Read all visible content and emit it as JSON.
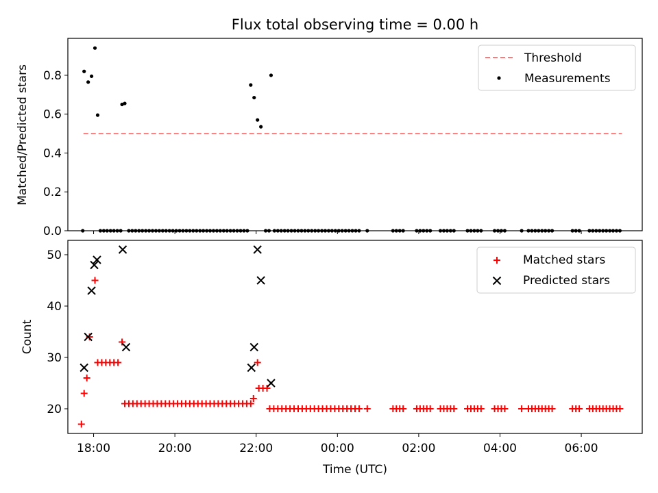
{
  "chart_data": [
    {
      "type": "scatter",
      "title": "Flux total observing time = 0.00 h",
      "ylabel": "Matched/Predicted stars",
      "xlim": [
        "17:22",
        "07:30"
      ],
      "ylim": [
        0,
        0.99
      ],
      "yticks": [
        0.0,
        0.2,
        0.4,
        0.6,
        0.8
      ],
      "ytick_labels": [
        "0.0",
        "0.2",
        "0.4",
        "0.6",
        "0.8"
      ],
      "legend": "top-right",
      "threshold": {
        "name": "Threshold",
        "value": 0.5,
        "x_range": [
          "17:45",
          "07:00"
        ],
        "color": "#ff7777"
      },
      "series": [
        {
          "name": "Measurements",
          "color": "#000000",
          "points": [
            [
              "17:44",
              0.0
            ],
            [
              "17:46",
              0.82
            ],
            [
              "17:52",
              0.765
            ],
            [
              "17:57",
              0.795
            ],
            [
              "18:02",
              0.94
            ],
            [
              "18:06",
              0.595
            ],
            [
              "18:10",
              0.0
            ],
            [
              "18:15",
              0.0
            ],
            [
              "18:20",
              0.0
            ],
            [
              "18:25",
              0.0
            ],
            [
              "18:30",
              0.0
            ],
            [
              "18:35",
              0.0
            ],
            [
              "18:40",
              0.0
            ],
            [
              "18:42",
              0.65
            ],
            [
              "18:46",
              0.655
            ],
            [
              "18:52",
              0.0
            ],
            [
              "18:57",
              0.0
            ],
            [
              "19:02",
              0.0
            ],
            [
              "19:07",
              0.0
            ],
            [
              "19:12",
              0.0
            ],
            [
              "19:17",
              0.0
            ],
            [
              "19:22",
              0.0
            ],
            [
              "19:27",
              0.0
            ],
            [
              "19:32",
              0.0
            ],
            [
              "19:37",
              0.0
            ],
            [
              "19:42",
              0.0
            ],
            [
              "19:47",
              0.0
            ],
            [
              "19:52",
              0.0
            ],
            [
              "19:57",
              0.0
            ],
            [
              "20:02",
              0.0
            ],
            [
              "20:07",
              0.0
            ],
            [
              "20:12",
              0.0
            ],
            [
              "20:17",
              0.0
            ],
            [
              "20:22",
              0.0
            ],
            [
              "20:27",
              0.0
            ],
            [
              "20:32",
              0.0
            ],
            [
              "20:37",
              0.0
            ],
            [
              "20:42",
              0.0
            ],
            [
              "20:47",
              0.0
            ],
            [
              "20:52",
              0.0
            ],
            [
              "20:57",
              0.0
            ],
            [
              "21:02",
              0.0
            ],
            [
              "21:07",
              0.0
            ],
            [
              "21:12",
              0.0
            ],
            [
              "21:17",
              0.0
            ],
            [
              "21:22",
              0.0
            ],
            [
              "21:27",
              0.0
            ],
            [
              "21:32",
              0.0
            ],
            [
              "21:37",
              0.0
            ],
            [
              "21:42",
              0.0
            ],
            [
              "21:47",
              0.0
            ],
            [
              "21:52",
              0.75
            ],
            [
              "21:57",
              0.685
            ],
            [
              "22:02",
              0.57
            ],
            [
              "22:07",
              0.535
            ],
            [
              "22:14",
              0.0
            ],
            [
              "22:19",
              0.0
            ],
            [
              "22:22",
              0.8
            ],
            [
              "22:27",
              0.0
            ],
            [
              "22:32",
              0.0
            ],
            [
              "22:37",
              0.0
            ],
            [
              "22:42",
              0.0
            ],
            [
              "22:47",
              0.0
            ],
            [
              "22:52",
              0.0
            ],
            [
              "22:57",
              0.0
            ],
            [
              "23:02",
              0.0
            ],
            [
              "23:07",
              0.0
            ],
            [
              "23:12",
              0.0
            ],
            [
              "23:17",
              0.0
            ],
            [
              "23:22",
              0.0
            ],
            [
              "23:27",
              0.0
            ],
            [
              "23:32",
              0.0
            ],
            [
              "23:37",
              0.0
            ],
            [
              "23:42",
              0.0
            ],
            [
              "23:47",
              0.0
            ],
            [
              "23:52",
              0.0
            ],
            [
              "23:57",
              0.0
            ],
            [
              "00:02",
              0.0
            ],
            [
              "00:07",
              0.0
            ],
            [
              "00:12",
              0.0
            ],
            [
              "00:17",
              0.0
            ],
            [
              "00:22",
              0.0
            ],
            [
              "00:27",
              0.0
            ],
            [
              "00:32",
              0.0
            ],
            [
              "00:44",
              0.0
            ],
            [
              "01:22",
              0.0
            ],
            [
              "01:27",
              0.0
            ],
            [
              "01:32",
              0.0
            ],
            [
              "01:37",
              0.0
            ],
            [
              "01:57",
              0.0
            ],
            [
              "02:02",
              0.0
            ],
            [
              "02:07",
              0.0
            ],
            [
              "02:12",
              0.0
            ],
            [
              "02:17",
              0.0
            ],
            [
              "02:32",
              0.0
            ],
            [
              "02:37",
              0.0
            ],
            [
              "02:42",
              0.0
            ],
            [
              "02:47",
              0.0
            ],
            [
              "02:52",
              0.0
            ],
            [
              "03:12",
              0.0
            ],
            [
              "03:17",
              0.0
            ],
            [
              "03:22",
              0.0
            ],
            [
              "03:27",
              0.0
            ],
            [
              "03:32",
              0.0
            ],
            [
              "03:52",
              0.0
            ],
            [
              "03:57",
              0.0
            ],
            [
              "04:02",
              0.0
            ],
            [
              "04:07",
              0.0
            ],
            [
              "04:32",
              0.0
            ],
            [
              "04:42",
              0.0
            ],
            [
              "04:47",
              0.0
            ],
            [
              "04:52",
              0.0
            ],
            [
              "04:57",
              0.0
            ],
            [
              "05:02",
              0.0
            ],
            [
              "05:07",
              0.0
            ],
            [
              "05:12",
              0.0
            ],
            [
              "05:17",
              0.0
            ],
            [
              "05:47",
              0.0
            ],
            [
              "05:52",
              0.0
            ],
            [
              "05:57",
              0.0
            ],
            [
              "06:12",
              0.0
            ],
            [
              "06:17",
              0.0
            ],
            [
              "06:22",
              0.0
            ],
            [
              "06:27",
              0.0
            ],
            [
              "06:32",
              0.0
            ],
            [
              "06:37",
              0.0
            ],
            [
              "06:42",
              0.0
            ],
            [
              "06:47",
              0.0
            ],
            [
              "06:52",
              0.0
            ],
            [
              "06:57",
              0.0
            ]
          ]
        }
      ]
    },
    {
      "type": "scatter",
      "xlabel": "Time (UTC)",
      "ylabel": "Count",
      "xlim": [
        "17:22",
        "07:30"
      ],
      "ylim": [
        15.2,
        52.8
      ],
      "xticks": [
        "18:00",
        "20:00",
        "22:00",
        "00:00",
        "02:00",
        "04:00",
        "06:00"
      ],
      "yticks": [
        20,
        30,
        40,
        50
      ],
      "ytick_labels": [
        "20",
        "30",
        "40",
        "50"
      ],
      "legend": "top-right",
      "series": [
        {
          "name": "Matched stars",
          "color": "#ff0000",
          "marker": "plus",
          "points": [
            [
              "17:42",
              17
            ],
            [
              "17:46",
              23
            ],
            [
              "17:50",
              26
            ],
            [
              "17:54",
              34
            ],
            [
              "18:02",
              45
            ],
            [
              "18:06",
              29
            ],
            [
              "18:12",
              29
            ],
            [
              "18:18",
              29
            ],
            [
              "18:24",
              29
            ],
            [
              "18:30",
              29
            ],
            [
              "18:36",
              29
            ],
            [
              "18:42",
              33
            ],
            [
              "18:46",
              21
            ],
            [
              "18:52",
              21
            ],
            [
              "18:58",
              21
            ],
            [
              "19:04",
              21
            ],
            [
              "19:10",
              21
            ],
            [
              "19:16",
              21
            ],
            [
              "19:22",
              21
            ],
            [
              "19:28",
              21
            ],
            [
              "19:34",
              21
            ],
            [
              "19:40",
              21
            ],
            [
              "19:46",
              21
            ],
            [
              "19:52",
              21
            ],
            [
              "19:58",
              21
            ],
            [
              "20:04",
              21
            ],
            [
              "20:10",
              21
            ],
            [
              "20:16",
              21
            ],
            [
              "20:22",
              21
            ],
            [
              "20:28",
              21
            ],
            [
              "20:34",
              21
            ],
            [
              "20:40",
              21
            ],
            [
              "20:46",
              21
            ],
            [
              "20:52",
              21
            ],
            [
              "20:58",
              21
            ],
            [
              "21:04",
              21
            ],
            [
              "21:10",
              21
            ],
            [
              "21:16",
              21
            ],
            [
              "21:22",
              21
            ],
            [
              "21:28",
              21
            ],
            [
              "21:34",
              21
            ],
            [
              "21:40",
              21
            ],
            [
              "21:46",
              21
            ],
            [
              "21:52",
              21
            ],
            [
              "21:56",
              22
            ],
            [
              "22:02",
              29
            ],
            [
              "22:04",
              24
            ],
            [
              "22:10",
              24
            ],
            [
              "22:16",
              24
            ],
            [
              "22:20",
              20
            ],
            [
              "22:26",
              20
            ],
            [
              "22:32",
              20
            ],
            [
              "22:38",
              20
            ],
            [
              "22:44",
              20
            ],
            [
              "22:50",
              20
            ],
            [
              "22:56",
              20
            ],
            [
              "23:02",
              20
            ],
            [
              "23:08",
              20
            ],
            [
              "23:14",
              20
            ],
            [
              "23:20",
              20
            ],
            [
              "23:26",
              20
            ],
            [
              "23:32",
              20
            ],
            [
              "23:38",
              20
            ],
            [
              "23:44",
              20
            ],
            [
              "23:50",
              20
            ],
            [
              "23:56",
              20
            ],
            [
              "00:02",
              20
            ],
            [
              "00:08",
              20
            ],
            [
              "00:14",
              20
            ],
            [
              "00:20",
              20
            ],
            [
              "00:26",
              20
            ],
            [
              "00:32",
              20
            ],
            [
              "00:44",
              20
            ],
            [
              "01:22",
              20
            ],
            [
              "01:27",
              20
            ],
            [
              "01:32",
              20
            ],
            [
              "01:37",
              20
            ],
            [
              "01:57",
              20
            ],
            [
              "02:02",
              20
            ],
            [
              "02:07",
              20
            ],
            [
              "02:12",
              20
            ],
            [
              "02:17",
              20
            ],
            [
              "02:32",
              20
            ],
            [
              "02:37",
              20
            ],
            [
              "02:42",
              20
            ],
            [
              "02:47",
              20
            ],
            [
              "02:52",
              20
            ],
            [
              "03:12",
              20
            ],
            [
              "03:17",
              20
            ],
            [
              "03:22",
              20
            ],
            [
              "03:27",
              20
            ],
            [
              "03:32",
              20
            ],
            [
              "03:52",
              20
            ],
            [
              "03:57",
              20
            ],
            [
              "04:02",
              20
            ],
            [
              "04:07",
              20
            ],
            [
              "04:32",
              20
            ],
            [
              "04:42",
              20
            ],
            [
              "04:47",
              20
            ],
            [
              "04:52",
              20
            ],
            [
              "04:57",
              20
            ],
            [
              "05:02",
              20
            ],
            [
              "05:07",
              20
            ],
            [
              "05:12",
              20
            ],
            [
              "05:17",
              20
            ],
            [
              "05:47",
              20
            ],
            [
              "05:52",
              20
            ],
            [
              "05:57",
              20
            ],
            [
              "06:12",
              20
            ],
            [
              "06:17",
              20
            ],
            [
              "06:22",
              20
            ],
            [
              "06:27",
              20
            ],
            [
              "06:32",
              20
            ],
            [
              "06:37",
              20
            ],
            [
              "06:42",
              20
            ],
            [
              "06:47",
              20
            ],
            [
              "06:52",
              20
            ],
            [
              "06:57",
              20
            ]
          ]
        },
        {
          "name": "Predicted stars",
          "color": "#000000",
          "marker": "x",
          "points": [
            [
              "17:46",
              28
            ],
            [
              "17:52",
              34
            ],
            [
              "17:57",
              43
            ],
            [
              "18:01",
              48
            ],
            [
              "18:05",
              49
            ],
            [
              "18:43",
              51
            ],
            [
              "18:48",
              32
            ],
            [
              "21:53",
              28
            ],
            [
              "21:57",
              32
            ],
            [
              "22:02",
              51
            ],
            [
              "22:07",
              45
            ],
            [
              "22:22",
              25
            ]
          ]
        }
      ]
    }
  ]
}
